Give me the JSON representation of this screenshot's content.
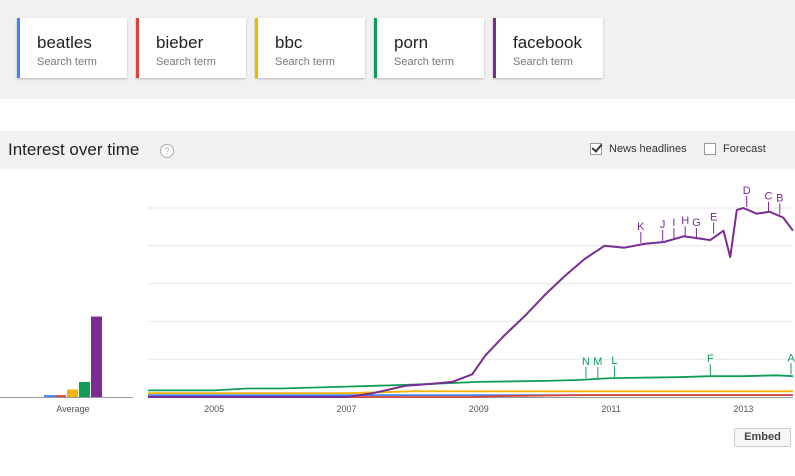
{
  "search_terms": [
    {
      "name": "beatles",
      "sub": "Search term",
      "color": "#4285f4"
    },
    {
      "name": "bieber",
      "sub": "Search term",
      "color": "#db4437"
    },
    {
      "name": "bbc",
      "sub": "Search term",
      "color": "#f4b400"
    },
    {
      "name": "porn",
      "sub": "Search term",
      "color": "#0f9d58"
    },
    {
      "name": "facebook",
      "sub": "Search term",
      "color": "#7b2c93"
    }
  ],
  "interest": {
    "title": "Interest over time",
    "help_icon_label": "?",
    "news_headlines_label": "News headlines",
    "news_headlines_checked": true,
    "forecast_label": "Forecast",
    "forecast_checked": false
  },
  "embed_label": "Embed",
  "chart_data": {
    "type": "line",
    "x_tick_labels": [
      "2005",
      "2007",
      "2009",
      "2011",
      "2013"
    ],
    "x_range": [
      2004.0,
      2013.75
    ],
    "ylim": [
      0,
      100
    ],
    "grid": true,
    "average_bars": {
      "label": "Average",
      "values": [
        {
          "term": "beatles",
          "value": 1
        },
        {
          "term": "bieber",
          "value": 1
        },
        {
          "term": "bbc",
          "value": 4
        },
        {
          "term": "porn",
          "value": 8
        },
        {
          "term": "facebook",
          "value": 43
        }
      ]
    },
    "series": [
      {
        "name": "beatles",
        "color": "#4285f4",
        "points": [
          [
            2004.0,
            1
          ],
          [
            2013.75,
            1
          ]
        ]
      },
      {
        "name": "bieber",
        "color": "#db4437",
        "points": [
          [
            2004.0,
            0
          ],
          [
            2008.9,
            0
          ],
          [
            2009.3,
            0.5
          ],
          [
            2010.5,
            1
          ],
          [
            2013.75,
            1
          ]
        ]
      },
      {
        "name": "bbc",
        "color": "#f4b400",
        "points": [
          [
            2004.0,
            2
          ],
          [
            2005.0,
            2
          ],
          [
            2006.0,
            2
          ],
          [
            2007.0,
            2
          ],
          [
            2008.0,
            3
          ],
          [
            2009.0,
            3
          ],
          [
            2010.0,
            3
          ],
          [
            2011.0,
            3
          ],
          [
            2012.0,
            3
          ],
          [
            2013.0,
            3
          ],
          [
            2013.75,
            3
          ]
        ]
      },
      {
        "name": "porn",
        "color": "#0f9d58",
        "points": [
          [
            2004.0,
            3.5
          ],
          [
            2005.0,
            3.5
          ],
          [
            2005.5,
            4.5
          ],
          [
            2006.0,
            4.5
          ],
          [
            2007.0,
            5.5
          ],
          [
            2008.0,
            6.5
          ],
          [
            2009.0,
            8
          ],
          [
            2010.0,
            8.5
          ],
          [
            2010.5,
            9
          ],
          [
            2011.0,
            10
          ],
          [
            2012.0,
            10.5
          ],
          [
            2012.5,
            11
          ],
          [
            2013.0,
            11
          ],
          [
            2013.5,
            11.5
          ],
          [
            2013.75,
            11
          ]
        ]
      },
      {
        "name": "facebook",
        "color": "#7b2c93",
        "points": [
          [
            2004.0,
            0
          ],
          [
            2007.0,
            0
          ],
          [
            2007.4,
            2
          ],
          [
            2007.9,
            6
          ],
          [
            2008.3,
            7
          ],
          [
            2008.6,
            8
          ],
          [
            2008.9,
            12
          ],
          [
            2009.1,
            22
          ],
          [
            2009.4,
            33
          ],
          [
            2009.7,
            43
          ],
          [
            2010.0,
            54
          ],
          [
            2010.3,
            64
          ],
          [
            2010.6,
            73
          ],
          [
            2010.9,
            80
          ],
          [
            2011.2,
            79
          ],
          [
            2011.5,
            81
          ],
          [
            2011.8,
            82
          ],
          [
            2012.1,
            85
          ],
          [
            2012.5,
            83
          ],
          [
            2012.7,
            88
          ],
          [
            2012.8,
            74
          ],
          [
            2012.9,
            99
          ],
          [
            2013.0,
            100
          ],
          [
            2013.2,
            97
          ],
          [
            2013.4,
            98
          ],
          [
            2013.6,
            95
          ],
          [
            2013.75,
            88
          ]
        ]
      }
    ],
    "annotations": [
      {
        "label": "A",
        "x": 2013.72,
        "y": 11.5,
        "series": "porn"
      },
      {
        "label": "B",
        "x": 2013.55,
        "y": 96,
        "series": "facebook"
      },
      {
        "label": "C",
        "x": 2013.38,
        "y": 97,
        "series": "facebook"
      },
      {
        "label": "D",
        "x": 2013.05,
        "y": 100,
        "series": "facebook"
      },
      {
        "label": "E",
        "x": 2012.55,
        "y": 86,
        "series": "facebook"
      },
      {
        "label": "F",
        "x": 2012.5,
        "y": 11,
        "series": "porn"
      },
      {
        "label": "G",
        "x": 2012.29,
        "y": 83,
        "series": "facebook"
      },
      {
        "label": "H",
        "x": 2012.12,
        "y": 84,
        "series": "facebook"
      },
      {
        "label": "I",
        "x": 2011.95,
        "y": 83,
        "series": "facebook"
      },
      {
        "label": "J",
        "x": 2011.78,
        "y": 82,
        "series": "facebook"
      },
      {
        "label": "K",
        "x": 2011.45,
        "y": 81,
        "series": "facebook"
      },
      {
        "label": "L",
        "x": 2011.05,
        "y": 10,
        "series": "porn"
      },
      {
        "label": "M",
        "x": 2010.8,
        "y": 9.5,
        "series": "porn"
      },
      {
        "label": "N",
        "x": 2010.62,
        "y": 9.5,
        "series": "porn"
      }
    ]
  }
}
